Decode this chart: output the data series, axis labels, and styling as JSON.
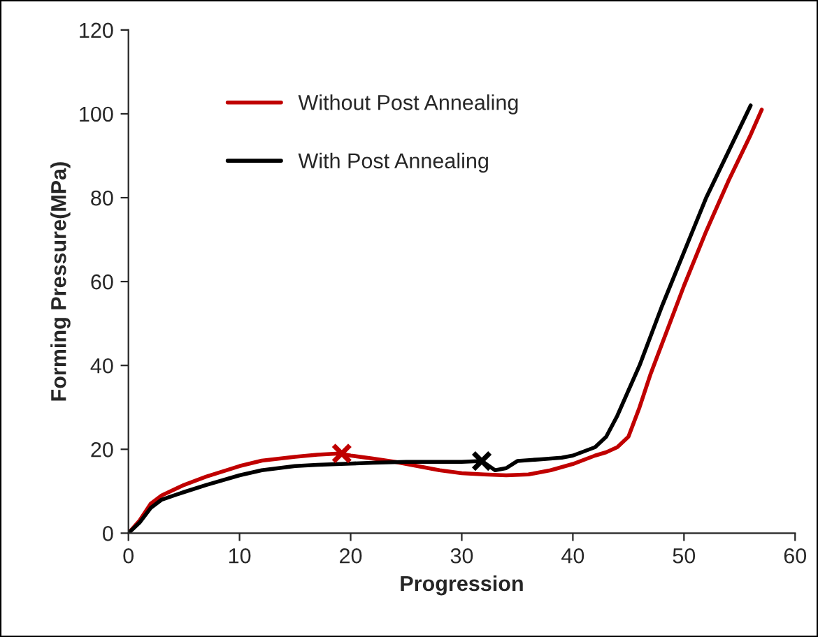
{
  "chart_data": {
    "type": "line",
    "xlabel": "Progression",
    "ylabel": "Forming Pressure(MPa)",
    "xlim": [
      0,
      60
    ],
    "ylim": [
      0,
      120
    ],
    "xticks": [
      0,
      10,
      20,
      30,
      40,
      50,
      60
    ],
    "yticks": [
      0,
      20,
      40,
      60,
      80,
      100,
      120
    ],
    "grid": false,
    "legend": "top left",
    "line_style": "solid",
    "marker": "none",
    "series": [
      {
        "name": "Without Post Annealing",
        "color": "#c00000",
        "x": [
          0,
          1,
          2,
          3,
          5,
          7,
          10,
          12,
          15,
          17,
          19,
          20,
          22,
          24,
          26,
          28,
          30,
          32,
          34,
          36,
          38,
          40,
          42,
          43,
          44,
          45,
          46,
          47,
          48,
          50,
          52,
          54,
          56,
          57
        ],
        "values": [
          0,
          3,
          7,
          9,
          11.5,
          13.5,
          16,
          17.3,
          18.2,
          18.7,
          19,
          18.5,
          17.8,
          17,
          16,
          15,
          14.3,
          14,
          13.8,
          14,
          15,
          16.5,
          18.5,
          19.3,
          20.5,
          23,
          30,
          38,
          45,
          59,
          72,
          84,
          95,
          101
        ]
      },
      {
        "name": "With Post Annealing",
        "color": "#000000",
        "x": [
          0,
          1,
          2,
          3,
          5,
          7,
          10,
          12,
          15,
          17,
          20,
          22,
          25,
          28,
          30,
          31.8,
          33,
          34,
          35,
          37,
          39,
          40,
          41,
          42,
          43,
          44,
          45,
          46,
          48,
          50,
          52,
          54,
          56
        ],
        "values": [
          0,
          2.5,
          6,
          8,
          9.8,
          11.5,
          13.8,
          15,
          16,
          16.3,
          16.6,
          16.8,
          17,
          17,
          17,
          17.2,
          15,
          15.5,
          17.2,
          17.6,
          18,
          18.5,
          19.5,
          20.5,
          23,
          28,
          34,
          40,
          54,
          67,
          80,
          91,
          102
        ]
      },
      {
        "type": "scatter",
        "marker": "cross",
        "color": "#c00000",
        "x": [
          19.2
        ],
        "values": [
          19
        ]
      },
      {
        "type": "scatter",
        "marker": "cross",
        "color": "#000000",
        "x": [
          31.8
        ],
        "values": [
          17.2
        ]
      }
    ]
  }
}
